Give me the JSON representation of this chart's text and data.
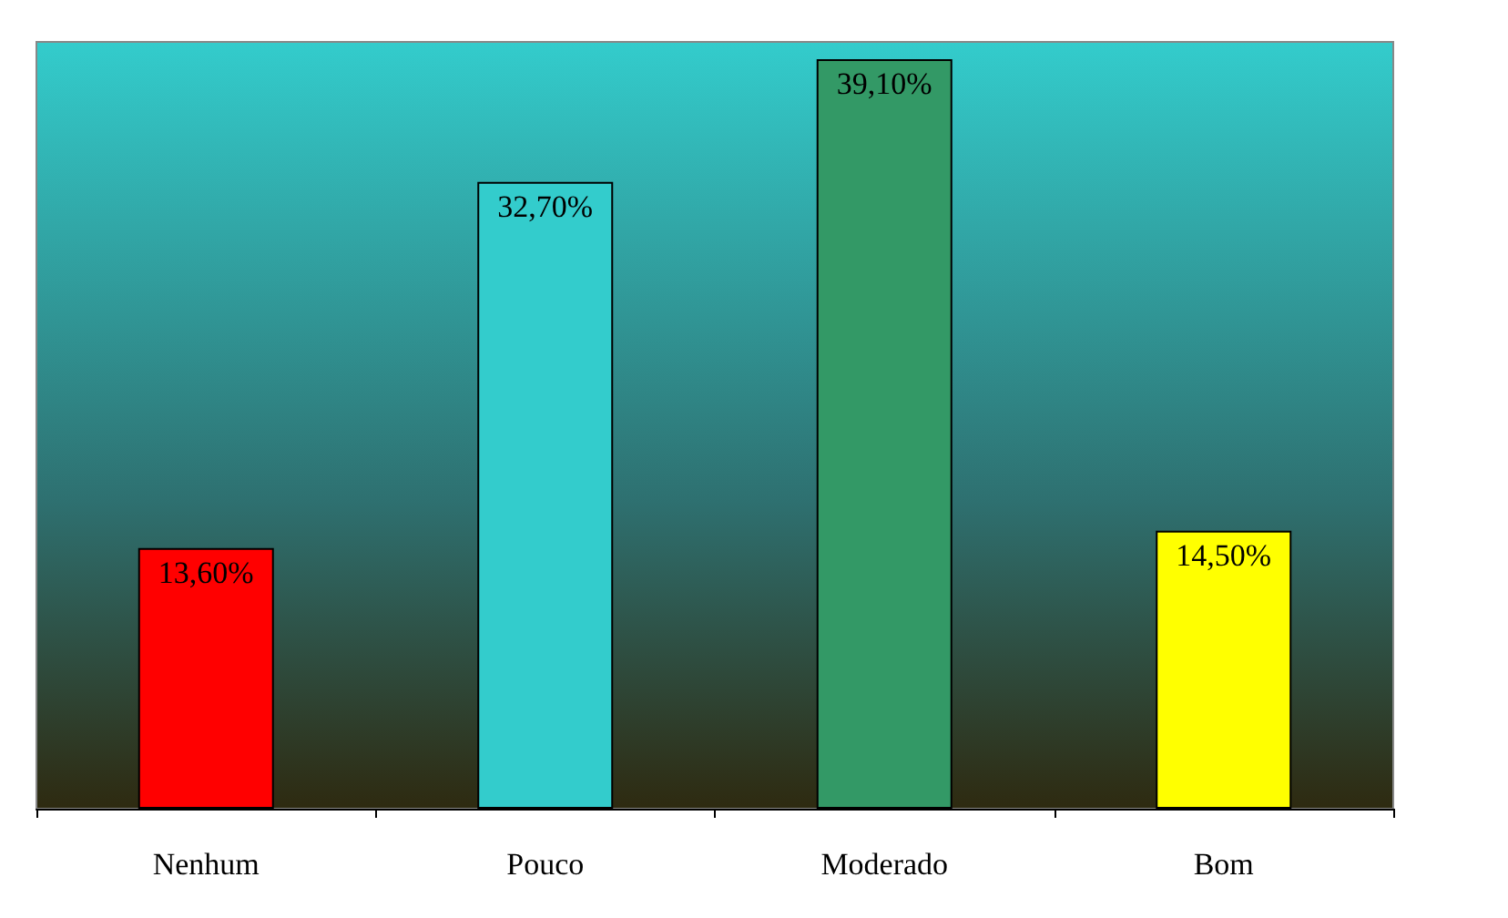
{
  "chart_data": {
    "type": "bar",
    "categories": [
      "Nenhum",
      "Pouco",
      "Moderado",
      "Bom"
    ],
    "values": [
      13.6,
      32.7,
      39.1,
      14.5
    ],
    "colors": [
      "#ff0000",
      "#33cccc",
      "#339966",
      "#ffff00"
    ],
    "value_labels": [
      "13,60%",
      "32,70%",
      "39,10%",
      "14,50%"
    ],
    "tick_labels": "x"
  }
}
